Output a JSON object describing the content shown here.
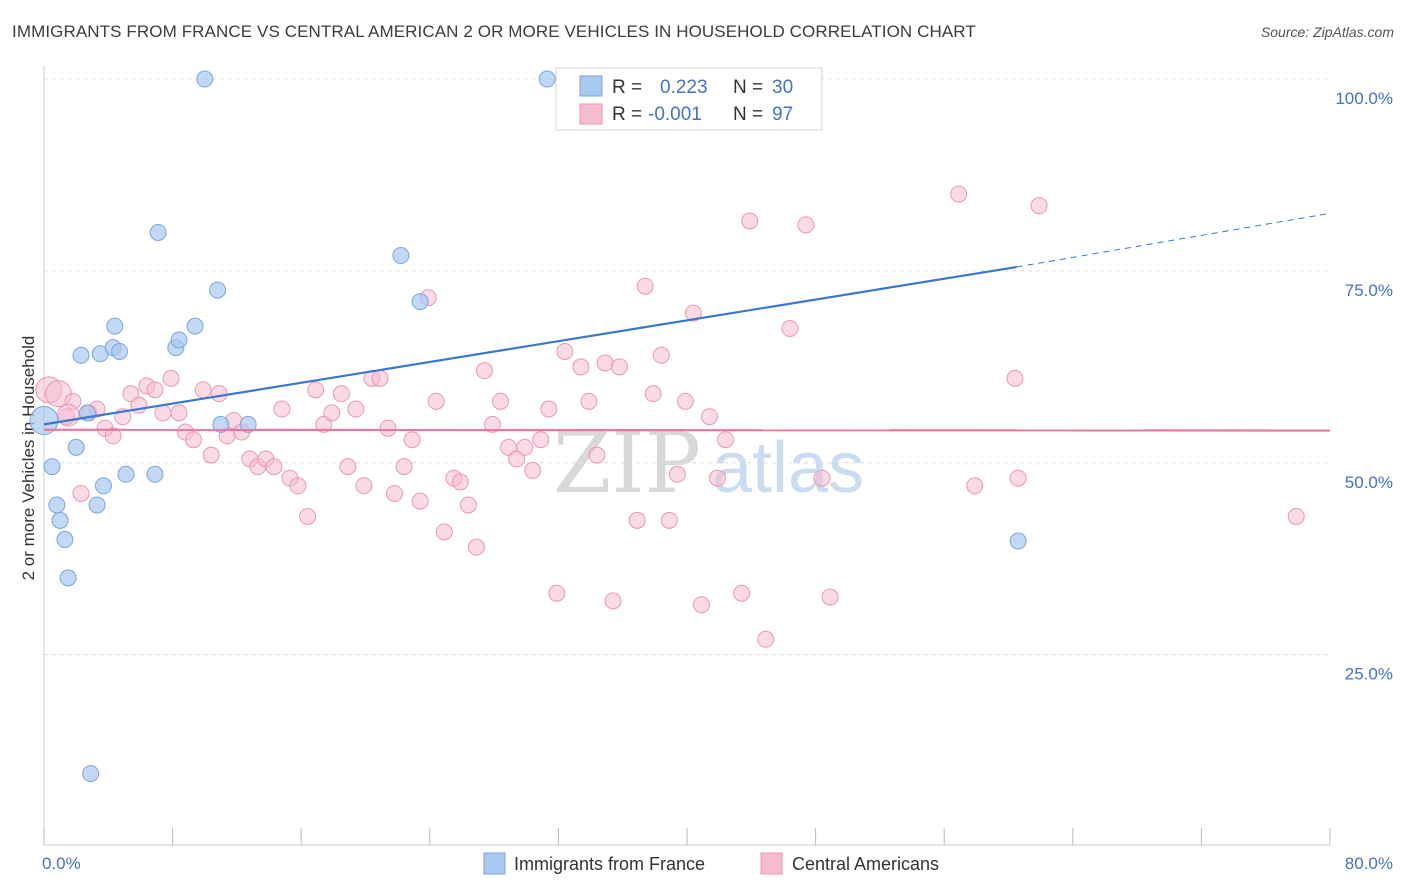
{
  "title": "IMMIGRANTS FROM FRANCE VS CENTRAL AMERICAN 2 OR MORE VEHICLES IN HOUSEHOLD CORRELATION CHART",
  "source": "Source: ZipAtlas.com",
  "watermark": {
    "zip": "ZIP",
    "atlas": "atlas"
  },
  "colors": {
    "blue_fill": "#a9c8f0",
    "blue_stroke": "#7aa6e0",
    "blue_line": "#3a78d0",
    "pink_fill": "#f5bccd",
    "pink_stroke": "#eb98b2",
    "pink_line": "#e8789c",
    "tick_text": "#4472c4",
    "grid": "#dddddd"
  },
  "legend_box": {
    "rows": [
      {
        "r_label": "R =",
        "r_value": "0.223",
        "n_label": "N =",
        "n_value": "30",
        "series": "blue"
      },
      {
        "r_label": "R =",
        "r_value": "-0.001",
        "n_label": "N =",
        "n_value": "97",
        "series": "pink"
      }
    ]
  },
  "bottom_legend": [
    {
      "label": "Immigrants from France",
      "series": "blue"
    },
    {
      "label": "Central Americans",
      "series": "pink"
    }
  ],
  "chart_data": {
    "type": "scatter",
    "ylabel": "2 or more Vehicles in Household",
    "xlim": [
      0,
      80
    ],
    "ylim": [
      0,
      105
    ],
    "x_tick_labels": [
      {
        "value": 0,
        "label": "0.0%"
      },
      {
        "value": 80,
        "label": "80.0%"
      }
    ],
    "y_tick_labels": [
      {
        "value": 100,
        "label": "100.0%"
      },
      {
        "value": 75,
        "label": "75.0%"
      },
      {
        "value": 50,
        "label": "50.0%"
      },
      {
        "value": 25,
        "label": "25.0%"
      }
    ],
    "grid": true,
    "series": [
      {
        "name": "Immigrants from France",
        "color": "#a9c8f0",
        "points": [
          [
            0.0,
            55.5
          ],
          [
            0.5,
            49.5
          ],
          [
            0.8,
            44.5
          ],
          [
            1.0,
            42.5
          ],
          [
            1.3,
            40.0
          ],
          [
            1.5,
            35.0
          ],
          [
            2.0,
            52.0
          ],
          [
            2.3,
            64.0
          ],
          [
            2.7,
            56.5
          ],
          [
            2.9,
            9.5
          ],
          [
            3.3,
            44.5
          ],
          [
            3.5,
            64.2
          ],
          [
            3.7,
            47.0
          ],
          [
            4.3,
            65.0
          ],
          [
            4.4,
            67.8
          ],
          [
            4.7,
            64.5
          ],
          [
            5.1,
            48.5
          ],
          [
            6.9,
            48.5
          ],
          [
            7.1,
            80.0
          ],
          [
            8.2,
            65.0
          ],
          [
            8.4,
            66.0
          ],
          [
            9.4,
            67.8
          ],
          [
            10.0,
            100.0
          ],
          [
            10.8,
            72.5
          ],
          [
            11.0,
            55.0
          ],
          [
            12.7,
            55.0
          ],
          [
            22.2,
            77.0
          ],
          [
            23.4,
            71.0
          ],
          [
            31.3,
            100.0
          ],
          [
            60.6,
            39.8
          ]
        ],
        "trend": {
          "x_start": 0,
          "y_start": 55.0,
          "x_solid_end": 60.5,
          "y_solid_end": 75.5,
          "x_end": 80,
          "y_end": 82.5
        }
      },
      {
        "name": "Central Americans",
        "color": "#f5bccd",
        "points": [
          [
            0.3,
            59.5
          ],
          [
            0.9,
            59.0
          ],
          [
            1.4,
            56.0
          ],
          [
            1.8,
            58.0
          ],
          [
            2.3,
            46.0
          ],
          [
            2.8,
            56.5
          ],
          [
            3.3,
            57.0
          ],
          [
            3.8,
            54.5
          ],
          [
            4.3,
            53.5
          ],
          [
            4.9,
            56.0
          ],
          [
            5.4,
            59.0
          ],
          [
            5.9,
            57.5
          ],
          [
            6.4,
            60.0
          ],
          [
            6.9,
            59.5
          ],
          [
            7.4,
            56.5
          ],
          [
            7.9,
            61.0
          ],
          [
            8.4,
            56.5
          ],
          [
            8.8,
            54.0
          ],
          [
            9.3,
            53.0
          ],
          [
            9.9,
            59.5
          ],
          [
            10.4,
            51.0
          ],
          [
            10.9,
            59.0
          ],
          [
            11.4,
            53.5
          ],
          [
            11.8,
            55.5
          ],
          [
            12.3,
            54.0
          ],
          [
            12.8,
            50.5
          ],
          [
            13.3,
            49.5
          ],
          [
            13.8,
            50.5
          ],
          [
            14.3,
            49.5
          ],
          [
            14.8,
            57.0
          ],
          [
            15.3,
            48.0
          ],
          [
            15.8,
            47.0
          ],
          [
            16.4,
            43.0
          ],
          [
            16.9,
            59.5
          ],
          [
            17.4,
            55.0
          ],
          [
            17.9,
            56.5
          ],
          [
            18.5,
            59.0
          ],
          [
            18.9,
            49.5
          ],
          [
            19.4,
            57.0
          ],
          [
            19.9,
            47.0
          ],
          [
            20.4,
            61.0
          ],
          [
            20.9,
            61.0
          ],
          [
            21.4,
            54.5
          ],
          [
            21.8,
            46.0
          ],
          [
            22.4,
            49.5
          ],
          [
            22.9,
            53.0
          ],
          [
            23.4,
            45.0
          ],
          [
            23.9,
            71.5
          ],
          [
            24.4,
            58.0
          ],
          [
            24.9,
            41.0
          ],
          [
            25.5,
            48.0
          ],
          [
            25.9,
            47.5
          ],
          [
            26.4,
            44.5
          ],
          [
            26.9,
            39.0
          ],
          [
            27.4,
            62.0
          ],
          [
            27.9,
            55.0
          ],
          [
            28.4,
            58.0
          ],
          [
            28.9,
            52.0
          ],
          [
            29.4,
            50.5
          ],
          [
            29.9,
            52.0
          ],
          [
            30.4,
            49.0
          ],
          [
            30.9,
            53.0
          ],
          [
            31.4,
            57.0
          ],
          [
            31.9,
            33.0
          ],
          [
            32.4,
            64.5
          ],
          [
            33.4,
            62.5
          ],
          [
            33.9,
            58.0
          ],
          [
            34.4,
            51.0
          ],
          [
            34.9,
            63.0
          ],
          [
            35.4,
            32.0
          ],
          [
            35.8,
            62.5
          ],
          [
            36.9,
            42.5
          ],
          [
            37.4,
            73.0
          ],
          [
            37.9,
            59.0
          ],
          [
            38.4,
            64.0
          ],
          [
            38.9,
            42.5
          ],
          [
            39.4,
            48.5
          ],
          [
            39.9,
            58.0
          ],
          [
            40.4,
            69.5
          ],
          [
            40.9,
            31.5
          ],
          [
            41.4,
            56.0
          ],
          [
            41.9,
            48.0
          ],
          [
            42.4,
            53.0
          ],
          [
            43.4,
            33.0
          ],
          [
            43.9,
            81.5
          ],
          [
            44.9,
            27.0
          ],
          [
            46.4,
            67.5
          ],
          [
            47.4,
            81.0
          ],
          [
            48.4,
            48.0
          ],
          [
            48.9,
            32.5
          ],
          [
            56.9,
            85.0
          ],
          [
            57.9,
            47.0
          ],
          [
            60.4,
            61.0
          ],
          [
            60.6,
            48.0
          ],
          [
            61.9,
            83.5
          ],
          [
            77.9,
            43.0
          ],
          [
            1.5,
            56.2
          ]
        ],
        "trend": {
          "x_start": 0,
          "y_start": 54.3,
          "x_end": 80,
          "y_end": 54.2
        }
      }
    ]
  }
}
